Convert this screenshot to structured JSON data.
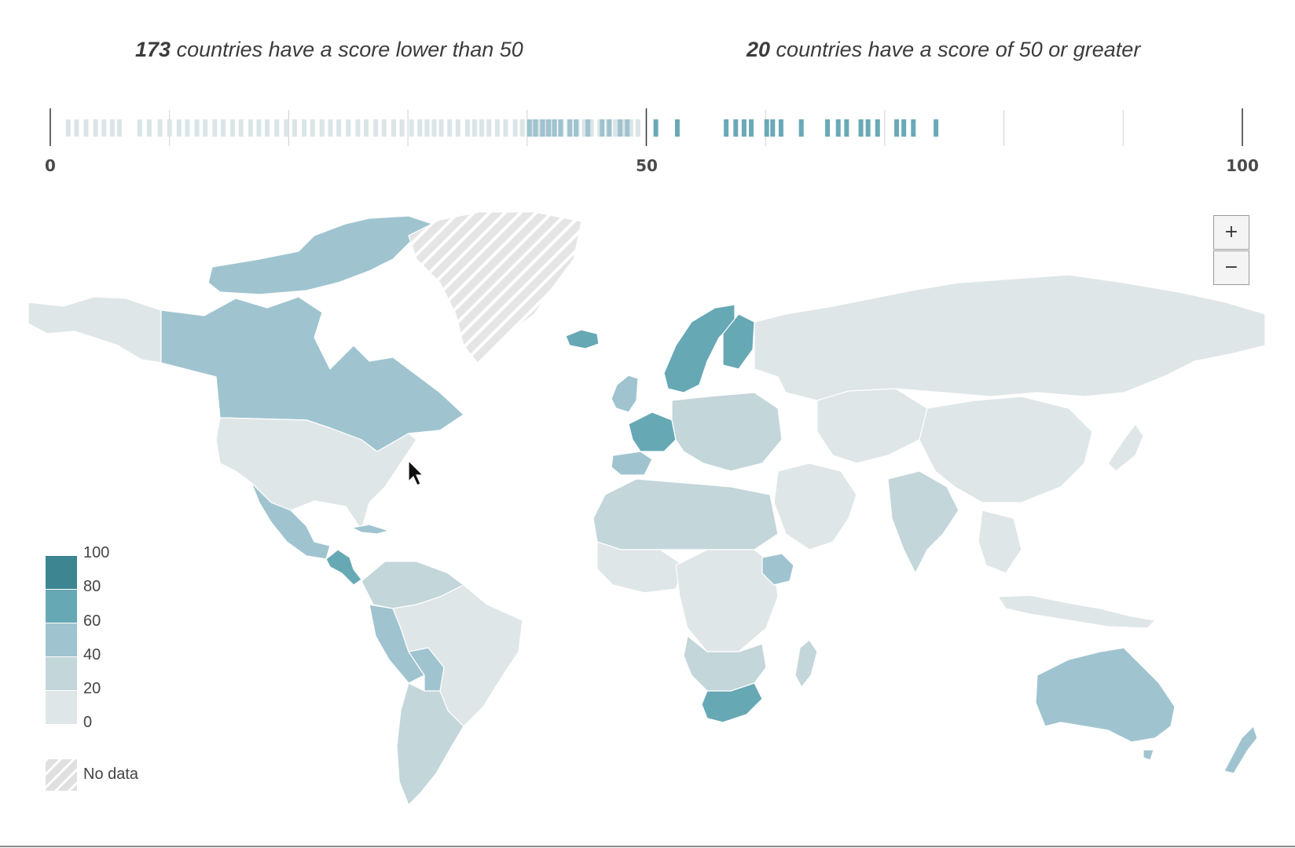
{
  "summary": {
    "low_count": "173",
    "low_text": " countries have a score lower than 50",
    "high_count": "20",
    "high_text": " countries have a score of 50 or greater"
  },
  "strip": {
    "min": 0,
    "max": 100,
    "axis_labels": [
      "0",
      "50",
      "100"
    ],
    "scores_low": [
      1.5,
      2.2,
      3.0,
      3.8,
      4.5,
      5.2,
      5.8,
      7.5,
      8.3,
      9.2,
      10.0,
      10.8,
      11.5,
      12.3,
      13.0,
      13.8,
      14.5,
      15.3,
      16.0,
      16.8,
      17.5,
      18.2,
      19.0,
      19.8,
      20.5,
      21.3,
      22.0,
      22.8,
      23.5,
      24.2,
      25.0,
      25.8,
      26.5,
      27.3,
      28.0,
      28.8,
      29.5,
      30.3,
      31.0,
      31.6,
      32.2,
      32.8,
      33.5,
      34.2,
      35.0,
      35.6,
      36.2,
      36.8,
      37.5,
      38.2,
      39.0,
      39.6,
      40.3,
      41.0,
      41.6,
      42.2,
      42.9,
      43.5,
      44.2,
      44.8,
      45.4,
      46.1,
      46.8,
      47.4,
      48.0,
      48.7,
      49.3
    ],
    "scores_mid": [
      40.2,
      40.7,
      41.3,
      41.8,
      42.3,
      42.8,
      43.6,
      44.1,
      45.1,
      46.3,
      46.9,
      47.8,
      48.4
    ],
    "scores_high": [
      50.8,
      52.6,
      56.7,
      57.5,
      58.2,
      58.8,
      60.1,
      60.6,
      61.3,
      63.0,
      65.2,
      66.1,
      66.8,
      68.0,
      68.6,
      69.4,
      71.0,
      71.6,
      72.4,
      74.3
    ],
    "colors": {
      "low": "#dbe5e7",
      "mid": "#9fc3cf",
      "high": "#6aa9b7",
      "axis": "#333333",
      "grid": "#d0d0d0"
    }
  },
  "map": {
    "colors": {
      "band_0_20": "#dfe6e8",
      "band_20_40": "#c3d6da",
      "band_40_60": "#9fc4d0",
      "band_60_80": "#67a8b5",
      "band_80_100": "#3d8591",
      "no_data_fill": "#e5e5e5",
      "no_data_stripe": "#ffffff",
      "border": "#ffffff"
    }
  },
  "zoom": {
    "in_label": "+",
    "out_label": "−"
  },
  "legend": {
    "labels": [
      "100",
      "80",
      "60",
      "40",
      "20",
      "0"
    ],
    "colors": [
      "#3d8591",
      "#67a8b5",
      "#9fc4d0",
      "#c3d6da",
      "#dfe6e8"
    ],
    "no_data_label": "No data"
  }
}
